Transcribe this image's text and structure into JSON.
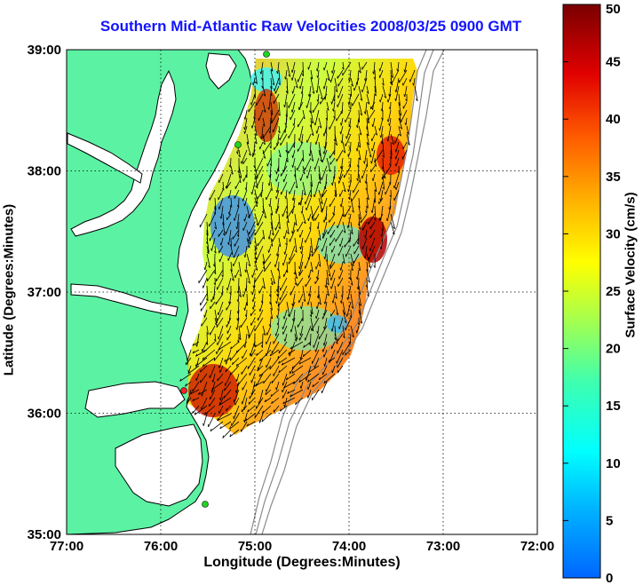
{
  "title": "Southern Mid-Atlantic Raw Velocities 2008/03/25 0900 GMT",
  "xlabel": "Longitude (Degrees:Minutes)",
  "ylabel": "Latitude (Degrees:Minutes)",
  "colorbar": {
    "label": "Surface Velocity (cm/s)",
    "min": 0,
    "max": 50,
    "ticks": [
      "0",
      "5",
      "10",
      "15",
      "20",
      "25",
      "30",
      "35",
      "40",
      "45",
      "50"
    ]
  },
  "axes": {
    "lon_range": [
      -77,
      -72
    ],
    "lat_range": [
      35,
      39
    ],
    "x_ticks": [
      "77:00",
      "76:00",
      "75:00",
      "74:00",
      "73:00",
      "72:00"
    ],
    "y_ticks": [
      "35:00",
      "36:00",
      "37:00",
      "38:00",
      "39:00"
    ],
    "grid": true,
    "grid_style": "dotted"
  },
  "colors": {
    "land": "#5cf2a4",
    "water": "#ffffff",
    "title": "#1414ff",
    "bathymetry": "#8a8a8a",
    "coast": "#000000"
  },
  "stations": [
    {
      "marker": "green-dot"
    },
    {
      "marker": "green-dot"
    },
    {
      "marker": "red-dot"
    },
    {
      "marker": "green-dot"
    }
  ]
}
